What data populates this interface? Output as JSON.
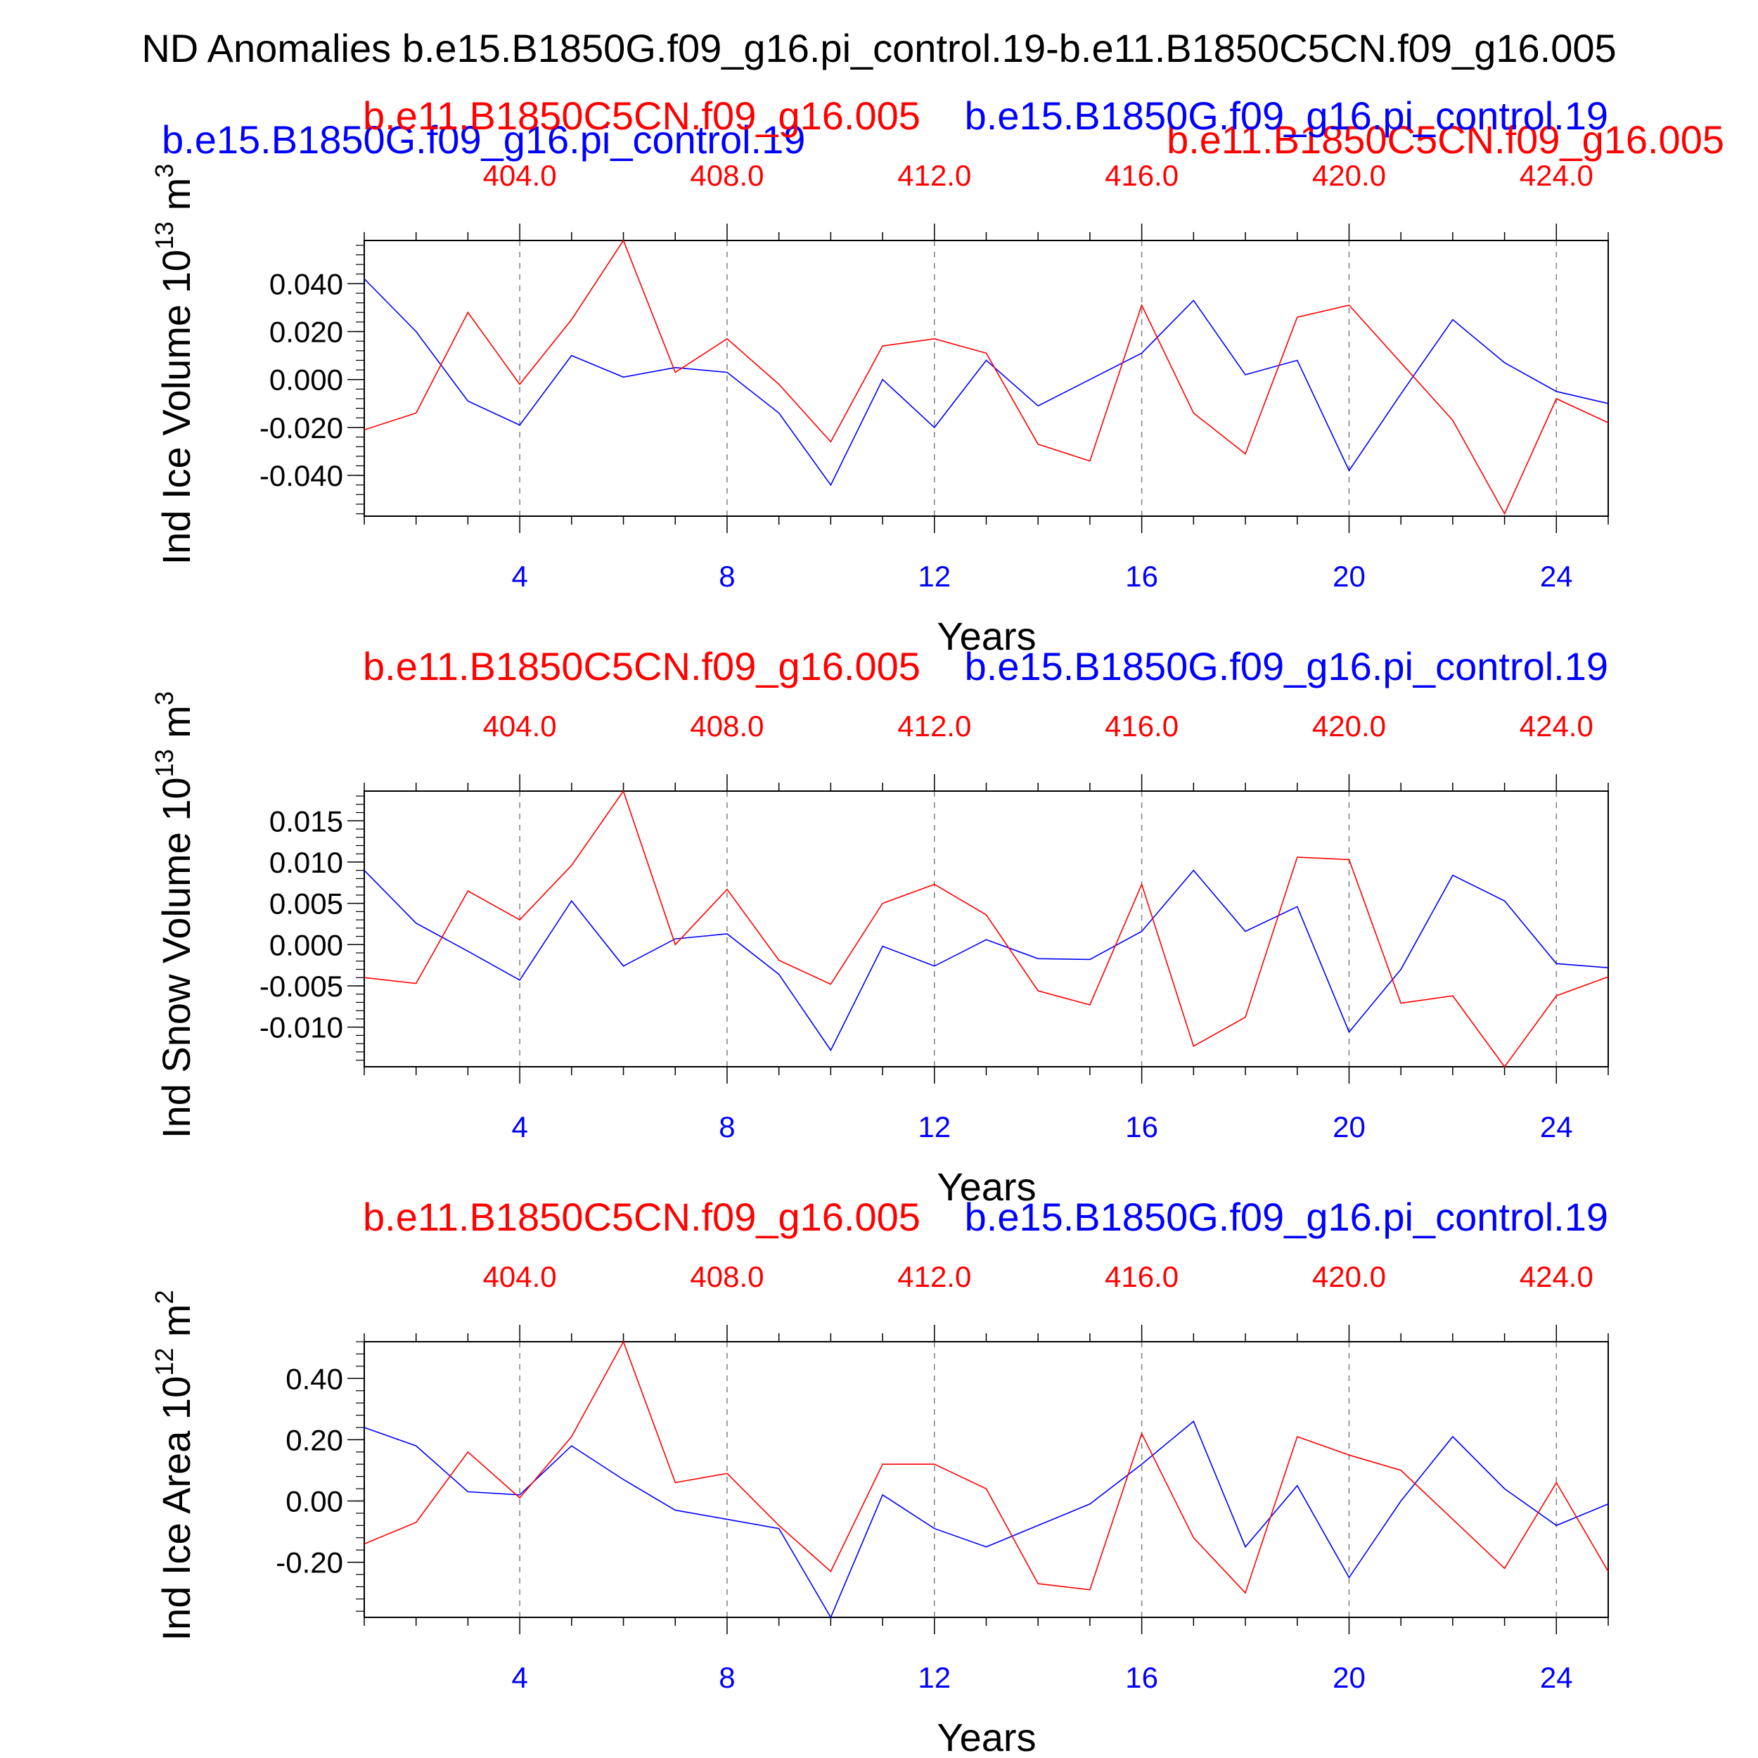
{
  "figure": {
    "title": "ND Anomalies b.e15.B1850G.f09_g16.pi_control.19-b.e11.B1850C5CN.f09_g16.005",
    "overlay_case_a": "b.e15.B1850G.f09_g16.pi_control.19",
    "overlay_case_b": "b.e11.B1850C5CN.f09_g16.005"
  },
  "colors": {
    "case_a": "#0000ff",
    "case_b": "#ff0000",
    "axis": "#000000",
    "grid": "#808080"
  },
  "chart_data": [
    {
      "type": "line",
      "ylabel_main": "Ind Ice Volume 10",
      "ylabel_exp": "13",
      "ylabel_unit": "m",
      "ylabel_unit_exp": "3",
      "xlabel": "Years",
      "top_left_label": "b.e11.B1850C5CN.f09_g16.005",
      "top_right_label": "b.e15.B1850G.f09_g16.pi_control.19",
      "xlim": [
        1,
        25
      ],
      "ylim": [
        -0.057,
        0.058
      ],
      "yticks": [
        -0.04,
        -0.02,
        0.0,
        0.02,
        0.04
      ],
      "ytick_labels": [
        "-0.040",
        "-0.020",
        "0.000",
        "0.020",
        "0.040"
      ],
      "yminor_step": 0.004,
      "xticks_bottom": [
        4,
        8,
        12,
        16,
        20,
        24
      ],
      "xtick_labels_bottom": [
        "4",
        "8",
        "12",
        "16",
        "20",
        "24"
      ],
      "xtick_labels_top": [
        "404.0",
        "408.0",
        "412.0",
        "416.0",
        "420.0",
        "424.0"
      ],
      "x": [
        1,
        2,
        3,
        4,
        5,
        6,
        7,
        8,
        9,
        10,
        11,
        12,
        13,
        14,
        15,
        16,
        17,
        18,
        19,
        20,
        21,
        22,
        23,
        24,
        25
      ],
      "series": [
        {
          "key": "case_a",
          "values": [
            0.042,
            0.02,
            -0.009,
            -0.019,
            0.01,
            0.001,
            0.005,
            0.003,
            -0.014,
            -0.044,
            0.0,
            -0.02,
            0.008,
            -0.011,
            0.0,
            0.011,
            0.033,
            0.002,
            0.008,
            -0.038,
            -0.006,
            0.025,
            0.007,
            -0.005,
            -0.01
          ]
        },
        {
          "key": "case_b",
          "values": [
            -0.021,
            -0.014,
            0.028,
            -0.002,
            0.025,
            0.058,
            0.003,
            0.017,
            -0.002,
            -0.026,
            0.014,
            0.017,
            0.011,
            -0.027,
            -0.034,
            0.031,
            -0.014,
            -0.031,
            0.026,
            0.031,
            0.007,
            -0.017,
            -0.056,
            -0.008,
            -0.018
          ]
        }
      ]
    },
    {
      "type": "line",
      "ylabel_main": "Ind Snow Volume 10",
      "ylabel_exp": "13",
      "ylabel_unit": "m",
      "ylabel_unit_exp": "3",
      "xlabel": "Years",
      "top_left_label": "b.e11.B1850C5CN.f09_g16.005",
      "top_right_label": "b.e15.B1850G.f09_g16.pi_control.19",
      "xlim": [
        1,
        25
      ],
      "ylim": [
        -0.0148,
        0.0186
      ],
      "yticks": [
        -0.01,
        -0.005,
        0.0,
        0.005,
        0.01,
        0.015
      ],
      "ytick_labels": [
        "-0.010",
        "-0.005",
        "0.000",
        "0.005",
        "0.010",
        "0.015"
      ],
      "yminor_step": 0.001,
      "xticks_bottom": [
        4,
        8,
        12,
        16,
        20,
        24
      ],
      "xtick_labels_bottom": [
        "4",
        "8",
        "12",
        "16",
        "20",
        "24"
      ],
      "xtick_labels_top": [
        "404.0",
        "408.0",
        "412.0",
        "416.0",
        "420.0",
        "424.0"
      ],
      "x": [
        1,
        2,
        3,
        4,
        5,
        6,
        7,
        8,
        9,
        10,
        11,
        12,
        13,
        14,
        15,
        16,
        17,
        18,
        19,
        20,
        21,
        22,
        23,
        24,
        25
      ],
      "series": [
        {
          "key": "case_a",
          "values": [
            0.009,
            0.0026,
            -0.0008,
            -0.0043,
            0.0053,
            -0.0026,
            0.0007,
            0.0013,
            -0.0036,
            -0.0128,
            -0.0002,
            -0.0026,
            0.0006,
            -0.0017,
            -0.0018,
            0.0016,
            0.009,
            0.0016,
            0.0046,
            -0.0106,
            -0.003,
            0.0084,
            0.0053,
            -0.0023,
            -0.0028
          ]
        },
        {
          "key": "case_b",
          "values": [
            -0.004,
            -0.0047,
            0.0065,
            0.003,
            0.0096,
            0.0186,
            0.0,
            0.0067,
            -0.0019,
            -0.0048,
            0.005,
            0.0073,
            0.0036,
            -0.0056,
            -0.0073,
            0.0073,
            -0.0123,
            -0.0088,
            0.0106,
            0.0103,
            -0.0071,
            -0.0062,
            -0.0148,
            -0.0062,
            -0.0039
          ]
        }
      ]
    },
    {
      "type": "line",
      "ylabel_main": "Ind Ice Area 10",
      "ylabel_exp": "12",
      "ylabel_unit": "m",
      "ylabel_unit_exp": "2",
      "xlabel": "Years",
      "top_left_label": "b.e11.B1850C5CN.f09_g16.005",
      "top_right_label": "b.e15.B1850G.f09_g16.pi_control.19",
      "xlim": [
        1,
        25
      ],
      "ylim": [
        -0.38,
        0.52
      ],
      "yticks": [
        -0.2,
        0.0,
        0.2,
        0.4
      ],
      "ytick_labels": [
        "-0.20",
        "0.00",
        "0.20",
        "0.40"
      ],
      "yminor_step": 0.04,
      "xticks_bottom": [
        4,
        8,
        12,
        16,
        20,
        24
      ],
      "xtick_labels_bottom": [
        "4",
        "8",
        "12",
        "16",
        "20",
        "24"
      ],
      "xtick_labels_top": [
        "404.0",
        "408.0",
        "412.0",
        "416.0",
        "420.0",
        "424.0"
      ],
      "x": [
        1,
        2,
        3,
        4,
        5,
        6,
        7,
        8,
        9,
        10,
        11,
        12,
        13,
        14,
        15,
        16,
        17,
        18,
        19,
        20,
        21,
        22,
        23,
        24,
        25
      ],
      "series": [
        {
          "key": "case_a",
          "values": [
            0.24,
            0.18,
            0.03,
            0.02,
            0.18,
            0.07,
            -0.03,
            -0.06,
            -0.09,
            -0.38,
            0.02,
            -0.09,
            -0.15,
            -0.08,
            -0.01,
            0.12,
            0.26,
            -0.15,
            0.05,
            -0.25,
            0.0,
            0.21,
            0.04,
            -0.08,
            -0.01
          ]
        },
        {
          "key": "case_b",
          "values": [
            -0.14,
            -0.07,
            0.16,
            0.01,
            0.21,
            0.52,
            0.06,
            0.09,
            -0.08,
            -0.23,
            0.12,
            0.12,
            0.04,
            -0.27,
            -0.29,
            0.22,
            -0.12,
            -0.3,
            0.21,
            0.15,
            0.1,
            -0.06,
            -0.22,
            0.06,
            -0.23
          ]
        }
      ]
    }
  ]
}
